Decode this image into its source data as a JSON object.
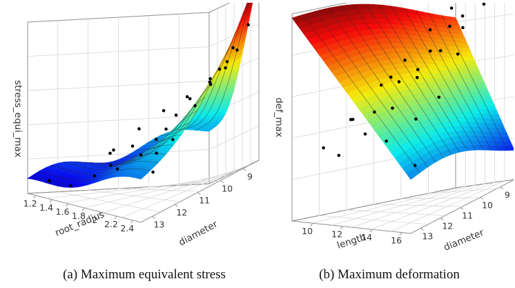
{
  "chart_data": [
    {
      "type": "surface3d",
      "caption": "(a) Maximum equivalent stress",
      "xlabel": "root_radius",
      "ylabel": "diameter",
      "zlabel": "stress_equi_max",
      "x_ticks": [
        1.2,
        1.4,
        1.6,
        1.8,
        2,
        2.2,
        2.4
      ],
      "y_ticks": [
        13,
        12,
        11,
        10,
        9
      ],
      "xlim": [
        1.1,
        2.5
      ],
      "ylim": [
        8.3,
        13.5
      ],
      "zlim": [
        0,
        1
      ],
      "grid": true,
      "colormap": "jet",
      "samples": [
        {
          "x": 1.2,
          "y": 13.1,
          "z": 0.08
        },
        {
          "x": 1.35,
          "y": 12.8,
          "z": 0.06
        },
        {
          "x": 1.5,
          "y": 12.4,
          "z": 0.12
        },
        {
          "x": 1.6,
          "y": 12.1,
          "z": 0.18
        },
        {
          "x": 1.7,
          "y": 11.6,
          "z": 0.28
        },
        {
          "x": 1.8,
          "y": 11.0,
          "z": 0.3
        },
        {
          "x": 1.9,
          "y": 10.5,
          "z": 0.42
        },
        {
          "x": 2.0,
          "y": 10.0,
          "z": 0.45
        },
        {
          "x": 2.1,
          "y": 9.6,
          "z": 0.55
        },
        {
          "x": 2.2,
          "y": 9.2,
          "z": 0.62
        },
        {
          "x": 2.3,
          "y": 8.9,
          "z": 0.7
        },
        {
          "x": 2.4,
          "y": 8.6,
          "z": 0.82
        },
        {
          "x": 2.45,
          "y": 8.4,
          "z": 0.98
        },
        {
          "x": 1.3,
          "y": 11.5,
          "z": 0.22
        },
        {
          "x": 1.4,
          "y": 10.8,
          "z": 0.35
        },
        {
          "x": 1.5,
          "y": 10.2,
          "z": 0.44
        },
        {
          "x": 1.6,
          "y": 9.6,
          "z": 0.5
        },
        {
          "x": 1.7,
          "y": 9.0,
          "z": 0.56
        },
        {
          "x": 1.9,
          "y": 12.6,
          "z": 0.2
        },
        {
          "x": 2.0,
          "y": 12.0,
          "z": 0.26
        },
        {
          "x": 2.1,
          "y": 11.3,
          "z": 0.38
        },
        {
          "x": 2.2,
          "y": 10.6,
          "z": 0.52
        },
        {
          "x": 2.3,
          "y": 10.0,
          "z": 0.6
        },
        {
          "x": 2.35,
          "y": 9.4,
          "z": 0.66
        },
        {
          "x": 2.45,
          "y": 12.8,
          "z": 0.24
        },
        {
          "x": 2.4,
          "y": 11.8,
          "z": 0.36
        },
        {
          "x": 2.3,
          "y": 12.2,
          "z": 0.3
        },
        {
          "x": 1.8,
          "y": 8.8,
          "z": 0.62
        },
        {
          "x": 2.0,
          "y": 8.6,
          "z": 0.72
        },
        {
          "x": 1.55,
          "y": 11.9,
          "z": 0.26
        }
      ]
    },
    {
      "type": "surface3d",
      "caption": "(b) Maximum deformation",
      "xlabel": "length",
      "ylabel": "diameter",
      "zlabel": "def_max",
      "x_ticks": [
        10,
        12,
        14,
        16
      ],
      "y_ticks": [
        13,
        12,
        11,
        10,
        9
      ],
      "xlim": [
        8.6,
        16.6
      ],
      "ylim": [
        8.3,
        13.5
      ],
      "zlim": [
        0,
        1
      ],
      "grid": true,
      "colormap": "jet",
      "samples": [
        {
          "x": 9.5,
          "y": 12.9,
          "z": 0.34
        },
        {
          "x": 10.2,
          "y": 12.3,
          "z": 0.46
        },
        {
          "x": 10.8,
          "y": 11.5,
          "z": 0.6
        },
        {
          "x": 11.4,
          "y": 10.9,
          "z": 0.7
        },
        {
          "x": 12.0,
          "y": 10.2,
          "z": 0.82
        },
        {
          "x": 12.6,
          "y": 9.6,
          "z": 0.9
        },
        {
          "x": 13.3,
          "y": 9.0,
          "z": 0.96
        },
        {
          "x": 9.8,
          "y": 10.5,
          "z": 0.58
        },
        {
          "x": 10.6,
          "y": 9.7,
          "z": 0.7
        },
        {
          "x": 11.2,
          "y": 9.2,
          "z": 0.8
        },
        {
          "x": 12.3,
          "y": 12.8,
          "z": 0.42
        },
        {
          "x": 13.0,
          "y": 12.1,
          "z": 0.52
        },
        {
          "x": 13.6,
          "y": 11.4,
          "z": 0.64
        },
        {
          "x": 14.2,
          "y": 10.7,
          "z": 0.74
        },
        {
          "x": 14.8,
          "y": 10.0,
          "z": 0.82
        },
        {
          "x": 15.4,
          "y": 9.3,
          "z": 0.9
        },
        {
          "x": 14.0,
          "y": 12.9,
          "z": 0.4
        },
        {
          "x": 15.0,
          "y": 12.2,
          "z": 0.48
        },
        {
          "x": 15.8,
          "y": 11.6,
          "z": 0.56
        },
        {
          "x": 16.2,
          "y": 13.0,
          "z": 0.3
        },
        {
          "x": 11.0,
          "y": 13.1,
          "z": 0.32
        },
        {
          "x": 12.8,
          "y": 11.0,
          "z": 0.66
        },
        {
          "x": 13.8,
          "y": 9.6,
          "z": 0.86
        },
        {
          "x": 10.4,
          "y": 11.0,
          "z": 0.62
        },
        {
          "x": 15.6,
          "y": 10.6,
          "z": 0.72
        },
        {
          "x": 9.2,
          "y": 11.8,
          "z": 0.44
        },
        {
          "x": 14.6,
          "y": 8.8,
          "z": 0.97
        },
        {
          "x": 11.8,
          "y": 12.2,
          "z": 0.5
        }
      ]
    }
  ]
}
